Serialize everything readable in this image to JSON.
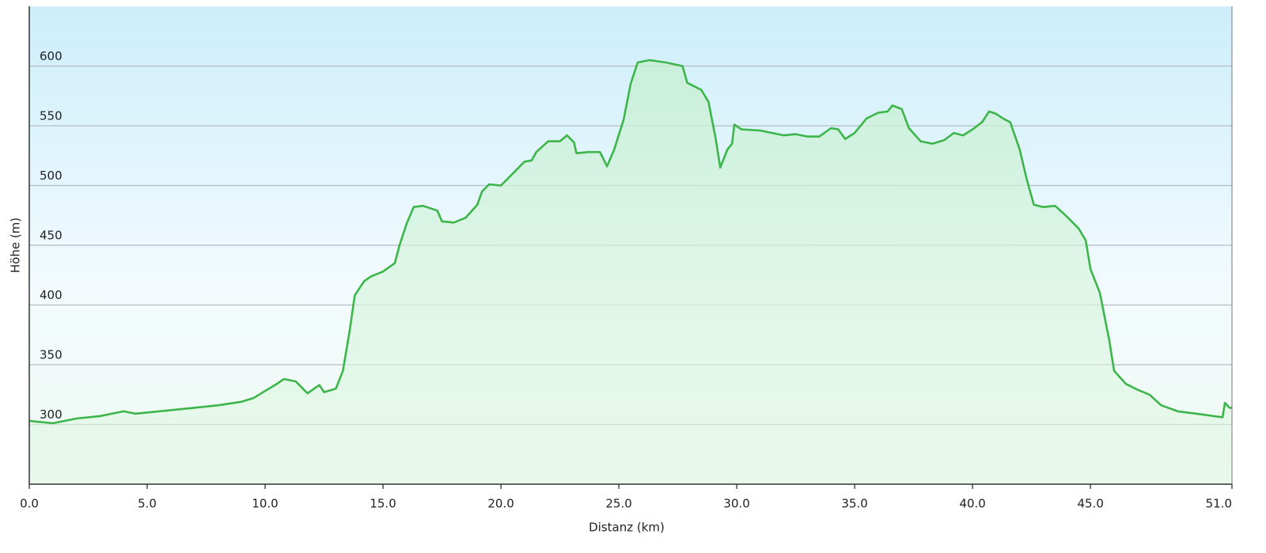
{
  "chart_data": {
    "type": "area",
    "xlabel": "Distanz  (km)",
    "ylabel": "Höhe (m)",
    "color": "#3cb54a",
    "grid": true,
    "xlim": [
      0,
      51
    ],
    "ylim": [
      250,
      650
    ],
    "xticks": [
      {
        "value": 0,
        "label": "0.0"
      },
      {
        "value": 5,
        "label": "5.0"
      },
      {
        "value": 10,
        "label": "10.0"
      },
      {
        "value": 15,
        "label": "15.0"
      },
      {
        "value": 20,
        "label": "20.0"
      },
      {
        "value": 25,
        "label": "25.0"
      },
      {
        "value": 30,
        "label": "30.0"
      },
      {
        "value": 35,
        "label": "35.0"
      },
      {
        "value": 40,
        "label": "40.0"
      },
      {
        "value": 45,
        "label": "45.0"
      },
      {
        "value": 51,
        "label": "51.0"
      }
    ],
    "yticks": [
      300,
      350,
      400,
      450,
      500,
      550,
      600
    ],
    "x": [
      0,
      1,
      2,
      3,
      4,
      4.5,
      5,
      6,
      7,
      8,
      9,
      9.5,
      10,
      10.5,
      10.8,
      11.3,
      11.5,
      11.8,
      12.3,
      12.5,
      13,
      13.3,
      13.6,
      13.8,
      14.2,
      14.5,
      15,
      15.5,
      15.7,
      16,
      16.3,
      16.7,
      17.3,
      17.5,
      18,
      18.5,
      19,
      19.2,
      19.5,
      20,
      20.5,
      21,
      21.3,
      21.5,
      22,
      22.5,
      22.8,
      23.1,
      23.2,
      23.7,
      24.2,
      24.5,
      24.8,
      25.2,
      25.5,
      25.8,
      26.3,
      27,
      27.7,
      27.9,
      28.5,
      28.8,
      29.1,
      29.3,
      29.6,
      29.8,
      29.9,
      30.2,
      31,
      32,
      32.5,
      33,
      33.5,
      34,
      34.3,
      34.6,
      35,
      35.5,
      36,
      36.4,
      36.6,
      37,
      37.3,
      37.8,
      38.3,
      38.8,
      39.2,
      39.6,
      40,
      40.4,
      40.7,
      41,
      41.3,
      41.6,
      42,
      42.3,
      42.6,
      43,
      43.5,
      44,
      44.5,
      44.8,
      45,
      45.4,
      45.8,
      46,
      46.5,
      47,
      47.5,
      48,
      48.7,
      49.5,
      50.2,
      50.6,
      50.7,
      50.9,
      51
    ],
    "values": [
      303,
      301,
      305,
      307,
      311,
      309,
      310,
      312,
      314,
      316,
      319,
      322,
      328,
      334,
      338,
      336,
      332,
      326,
      333,
      327,
      330,
      345,
      380,
      408,
      420,
      424,
      428,
      435,
      450,
      468,
      482,
      483,
      479,
      470,
      469,
      473,
      484,
      495,
      501,
      500,
      510,
      520,
      521,
      528,
      537,
      537,
      542,
      536,
      527,
      528,
      528,
      516,
      530,
      555,
      585,
      603,
      605,
      603,
      600,
      586,
      580,
      570,
      540,
      515,
      530,
      535,
      551,
      547,
      546,
      542,
      543,
      541,
      541,
      548,
      547,
      539,
      544,
      556,
      561,
      562,
      567,
      564,
      548,
      537,
      535,
      538,
      544,
      542,
      547,
      553,
      562,
      560,
      556,
      553,
      530,
      505,
      484,
      482,
      483,
      474,
      464,
      454,
      430,
      410,
      370,
      345,
      334,
      329,
      325,
      316,
      311,
      309,
      307,
      306,
      318,
      314,
      314
    ]
  }
}
